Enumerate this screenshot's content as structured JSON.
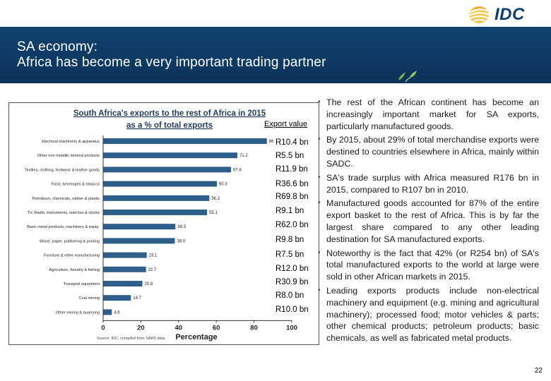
{
  "slide": {
    "title_line1": "SA economy:",
    "title_line2": "Africa has become a very important trading partner",
    "logo_text": "IDC",
    "page_number": "22"
  },
  "export_values": {
    "header": "Export value",
    "items": [
      "R10.4 bn",
      "R5.5 bn",
      "R11.9 bn",
      "R36.6 bn",
      "R69.8 bn",
      "R9.1 bn",
      "R62.0 bn",
      "R9.8 bn",
      "R7.5 bn",
      "R12.0 bn",
      "R30.9 bn",
      "R8.0 bn",
      "R10.0 bn"
    ]
  },
  "bullets": [
    "The rest of the African continent has become an increasingly important market for SA exports, particularly manufactured goods.",
    "By 2015, about 29% of total merchandise exports were destined to countries elsewhere in Africa, mainly within SADC.",
    "SA's trade surplus with Africa measured R176 bn in 2015, compared to R107 bn in 2010.",
    "Manufactured goods accounted for 87% of the entire export basket to the rest of Africa. This is by far the largest share compared to any other leading destination for SA manufactured exports.",
    "Noteworthy is the fact that 42% (or R254 bn) of SA's total manufactured exports to the world at large were sold in other African markets in 2015.",
    "Leading exports products include non-electrical machinery and equipment (e.g. mining and agricultural machinery); processed food; motor vehicles & parts; other chemical products; petroleum products; basic chemicals, as well as fabricated metal products."
  ],
  "chart_data": {
    "type": "bar",
    "orientation": "horizontal",
    "title_line1": "South Africa's exports to the rest of Africa in 2015",
    "title_line2": "as a % of total exports",
    "categories": [
      "Electrical machinery & apparatus",
      "Other non metallic mineral products",
      "Textiles, clothing, footwear & leather goods",
      "Food, beverages & tobacco",
      "Petroleum, chemicals, rubber & plastic",
      "TV, Radio, instruments, watches & clocks",
      "Basic metal products, machinery & equip.",
      "Wood, paper, publishing & printing",
      "Furniture & other manufacturing",
      "Agriculture, forestry & fishing",
      "Transport equipment",
      "Coal mining",
      "Other mining & quarrying"
    ],
    "values": [
      86.8,
      71.2,
      67.8,
      60.3,
      56.3,
      55.1,
      38.3,
      38.0,
      23.1,
      22.7,
      20.8,
      14.7,
      4.6
    ],
    "value_labels": [
      "86.8",
      "71.2",
      "67.8",
      "60.3",
      "56.3",
      "55.1",
      "38.3",
      "38.0",
      "23.1",
      "22.7",
      "20.8",
      "14.7",
      "4.6"
    ],
    "xlim": [
      0,
      100
    ],
    "xticks": [
      "0",
      "20",
      "40",
      "60",
      "80",
      "100"
    ],
    "xlabel": "Percentage",
    "source": "Source: IDC, compiled from SARS data",
    "bar_color": "#2e5f8a",
    "grid": false
  }
}
